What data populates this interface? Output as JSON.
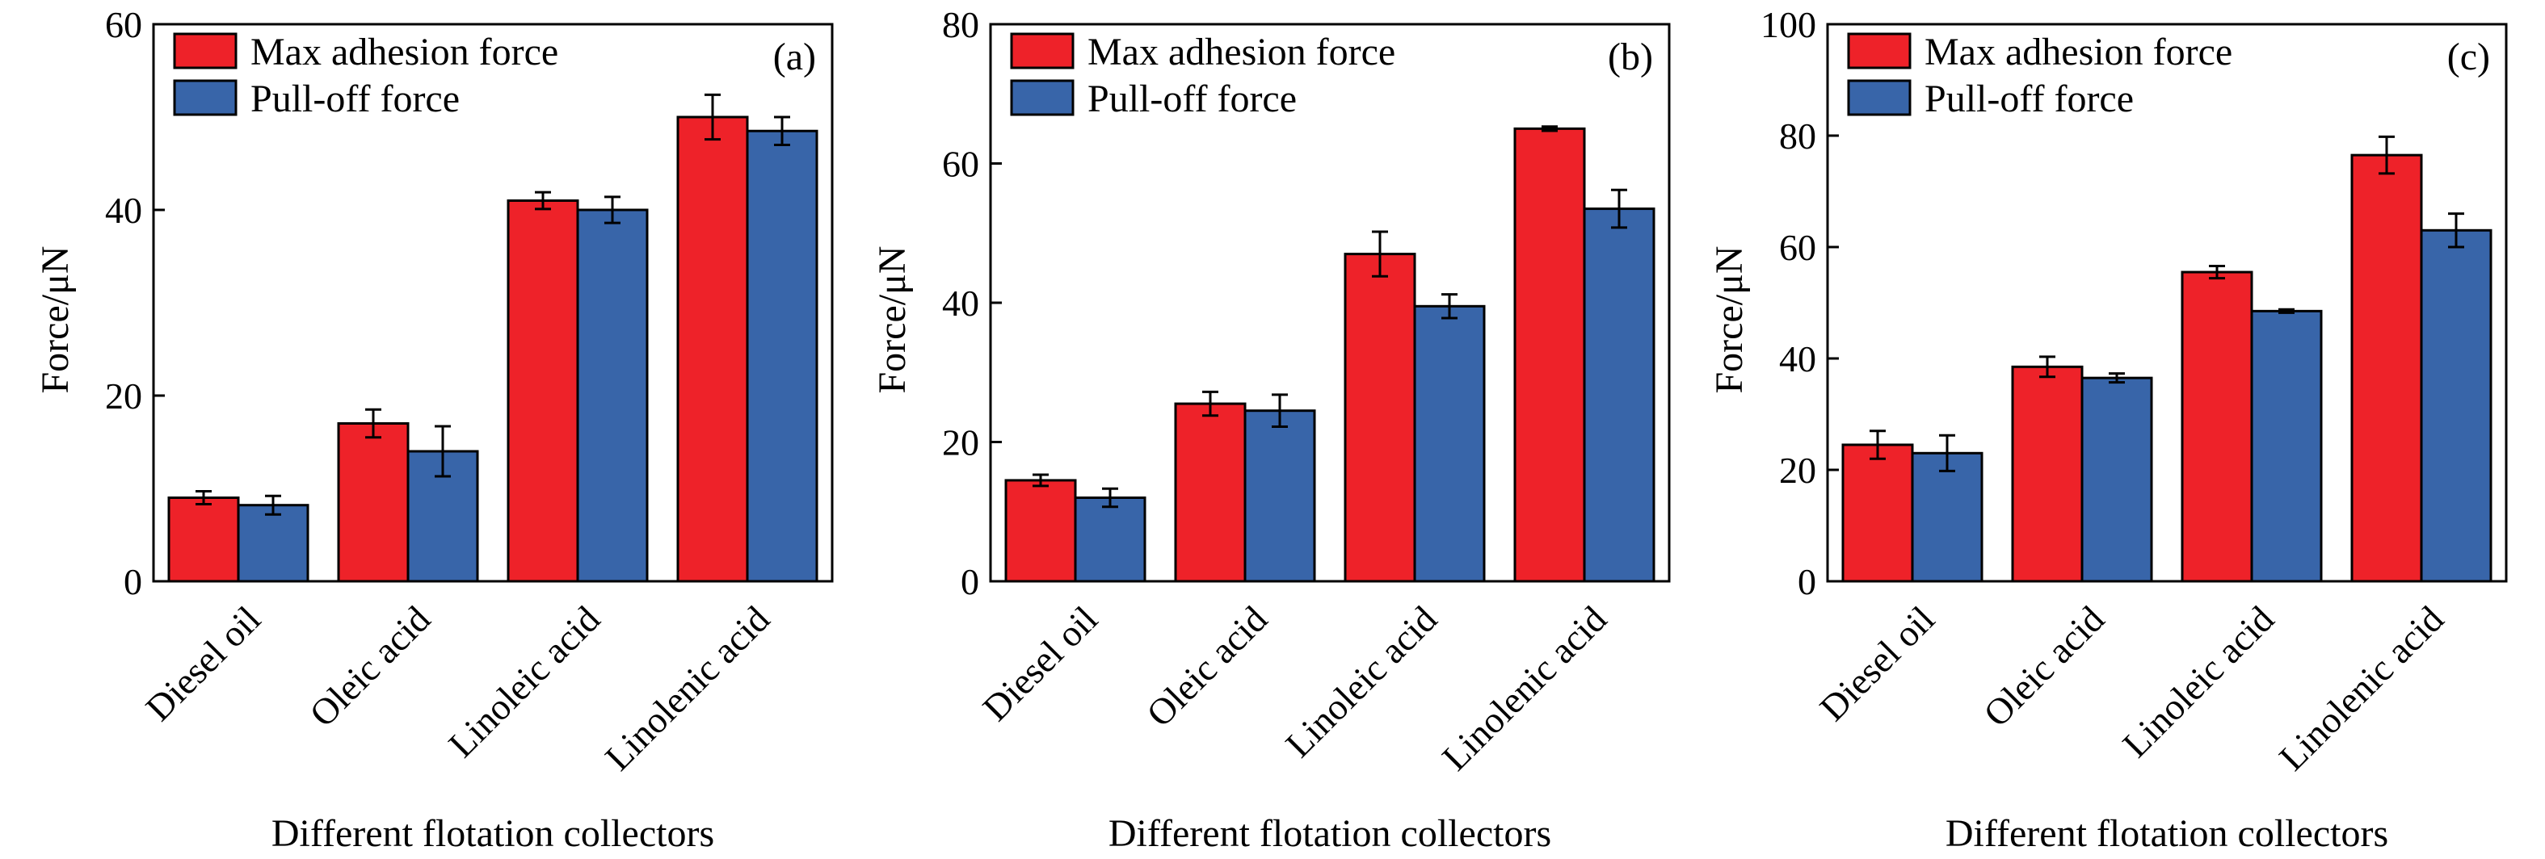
{
  "colors": {
    "max_adhesion": "#ee2229",
    "pull_off": "#3865a9",
    "stroke": "#000000"
  },
  "chart_data": [
    {
      "type": "bar",
      "panel_label": "(a)",
      "categories": [
        "Diesel oil",
        "Oleic acid",
        "Linoleic acid",
        "Linolenic acid"
      ],
      "xlabel": "Different flotation collectors",
      "ylabel": "Force/μN",
      "ylim": [
        0,
        60
      ],
      "yticks": [
        0,
        20,
        40,
        60
      ],
      "legend_position": "top-left",
      "grid": false,
      "series": [
        {
          "name": "Max adhesion force",
          "values": [
            9,
            17,
            41,
            50
          ],
          "errors": [
            0.7,
            1.5,
            0.9,
            2.4
          ]
        },
        {
          "name": "Pull-off force",
          "values": [
            8.2,
            14,
            40,
            48.5
          ],
          "errors": [
            1.0,
            2.7,
            1.4,
            1.5
          ]
        }
      ]
    },
    {
      "type": "bar",
      "panel_label": "(b)",
      "categories": [
        "Diesel oil",
        "Oleic acid",
        "Linoleic acid",
        "Linolenic acid"
      ],
      "xlabel": "Different flotation collectors",
      "ylabel": "Force/μN",
      "ylim": [
        0,
        80
      ],
      "yticks": [
        0,
        20,
        40,
        60,
        80
      ],
      "legend_position": "top-left",
      "grid": false,
      "series": [
        {
          "name": "Max adhesion force",
          "values": [
            14.5,
            25.5,
            47,
            65
          ],
          "errors": [
            0.8,
            1.7,
            3.2,
            0.3
          ]
        },
        {
          "name": "Pull-off force",
          "values": [
            12,
            24.5,
            39.5,
            53.5
          ],
          "errors": [
            1.3,
            2.3,
            1.7,
            2.7
          ]
        }
      ]
    },
    {
      "type": "bar",
      "panel_label": "(c)",
      "categories": [
        "Diesel oil",
        "Oleic acid",
        "Linoleic acid",
        "Linolenic acid"
      ],
      "xlabel": "Different flotation collectors",
      "ylabel": "Force/μN",
      "ylim": [
        0,
        100
      ],
      "yticks": [
        0,
        20,
        40,
        60,
        80,
        100
      ],
      "legend_position": "top-left",
      "grid": false,
      "series": [
        {
          "name": "Max adhesion force",
          "values": [
            24.5,
            38.5,
            55.5,
            76.5
          ],
          "errors": [
            2.5,
            1.8,
            1.1,
            3.3
          ]
        },
        {
          "name": "Pull-off force",
          "values": [
            23,
            36.5,
            48.5,
            63
          ],
          "errors": [
            3.2,
            0.8,
            0.3,
            3.0
          ]
        }
      ]
    }
  ]
}
